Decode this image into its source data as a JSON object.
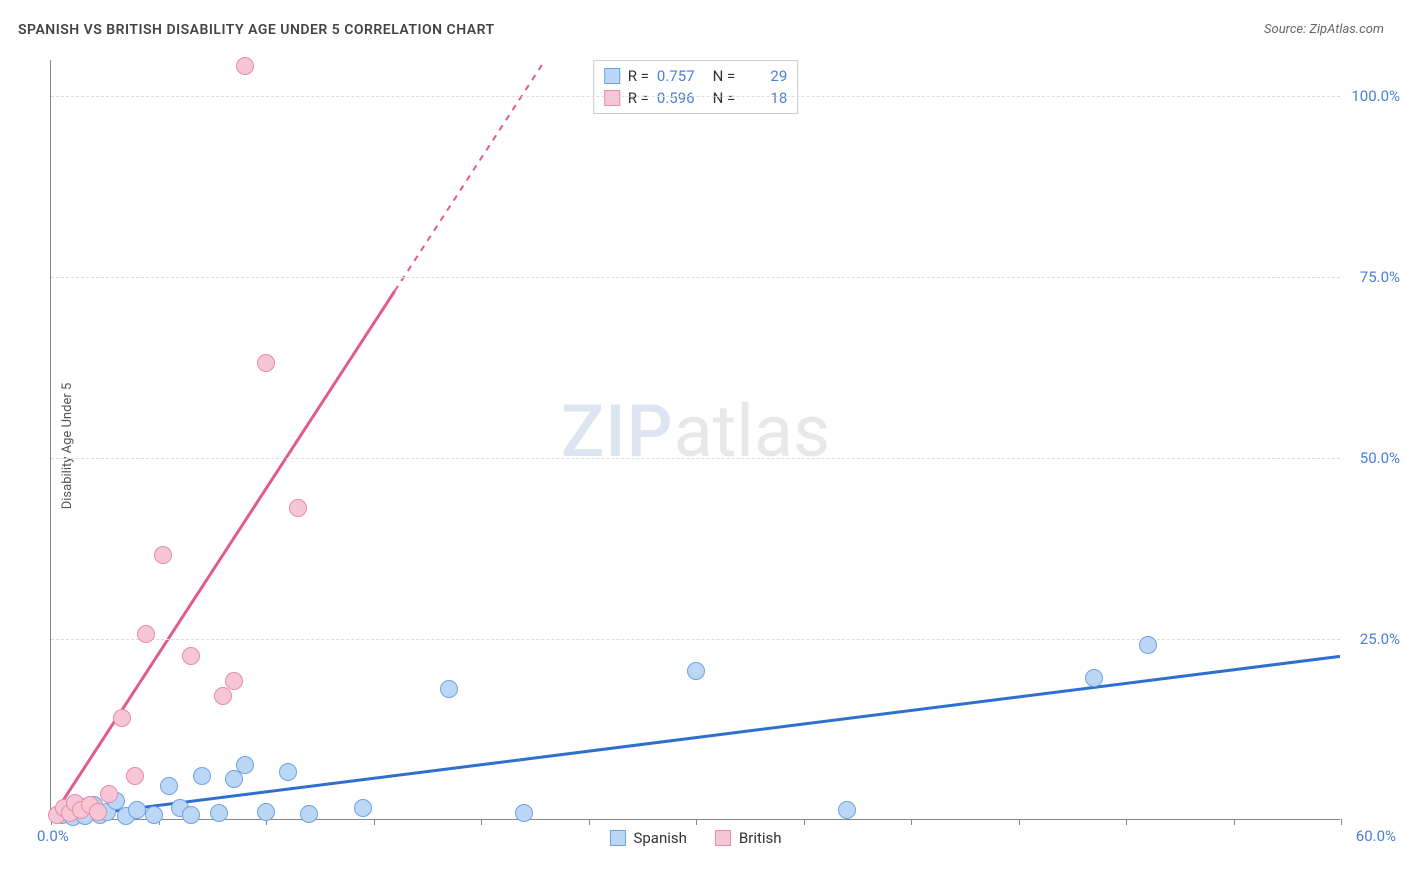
{
  "title": "SPANISH VS BRITISH DISABILITY AGE UNDER 5 CORRELATION CHART",
  "source": "Source: ZipAtlas.com",
  "y_label": "Disability Age Under 5",
  "watermark_a": "ZIP",
  "watermark_b": "atlas",
  "chart": {
    "type": "scatter",
    "xlim": [
      0,
      60
    ],
    "ylim": [
      0,
      105
    ],
    "x_origin_label": "0.0%",
    "x_max_label": "60.0%",
    "x_ticks_pct": [
      0,
      5,
      10,
      15,
      20,
      25,
      30,
      35,
      40,
      45,
      50,
      55,
      60
    ],
    "y_gridlines": [
      25,
      50,
      75,
      100
    ],
    "y_tick_labels": [
      "25.0%",
      "50.0%",
      "75.0%",
      "100.0%"
    ],
    "series": [
      {
        "name": "Spanish",
        "color_fill": "#bcd6f5",
        "color_stroke": "#6fa3e0",
        "trend_color": "#2f6fd0",
        "R": "0.757",
        "N": "29",
        "trend": {
          "x1": 0,
          "y1": 0,
          "x2": 60,
          "y2": 22.5,
          "dashed_after_x": null
        },
        "point_radius": 9,
        "points": [
          [
            0.5,
            0.5
          ],
          [
            0.8,
            1.2
          ],
          [
            1.0,
            0.3
          ],
          [
            1.3,
            1.8
          ],
          [
            1.6,
            0.4
          ],
          [
            2.0,
            2.0
          ],
          [
            2.3,
            0.6
          ],
          [
            2.6,
            1.0
          ],
          [
            3.0,
            2.5
          ],
          [
            3.5,
            0.4
          ],
          [
            4.0,
            1.2
          ],
          [
            4.8,
            0.5
          ],
          [
            5.5,
            4.5
          ],
          [
            6.0,
            1.5
          ],
          [
            6.5,
            0.6
          ],
          [
            7.0,
            6.0
          ],
          [
            7.8,
            0.8
          ],
          [
            8.5,
            5.5
          ],
          [
            9.0,
            7.5
          ],
          [
            10.0,
            1.0
          ],
          [
            11.0,
            6.5
          ],
          [
            12.0,
            0.7
          ],
          [
            14.5,
            1.5
          ],
          [
            18.5,
            18.0
          ],
          [
            22.0,
            0.8
          ],
          [
            30.0,
            20.5
          ],
          [
            37.0,
            1.2
          ],
          [
            48.5,
            19.5
          ],
          [
            51.0,
            24.0
          ]
        ]
      },
      {
        "name": "British",
        "color_fill": "#f6c6d4",
        "color_stroke": "#e98bab",
        "trend_color": "#e15c8a",
        "R": "0.596",
        "N": "18",
        "trend": {
          "x1": 0,
          "y1": 0,
          "x2": 23,
          "y2": 105,
          "dashed_after_x": 16
        },
        "point_radius": 9,
        "points": [
          [
            0.3,
            0.6
          ],
          [
            0.6,
            1.5
          ],
          [
            0.9,
            0.8
          ],
          [
            1.1,
            2.2
          ],
          [
            1.4,
            1.3
          ],
          [
            1.8,
            2.0
          ],
          [
            2.2,
            1.0
          ],
          [
            2.7,
            3.5
          ],
          [
            3.3,
            14.0
          ],
          [
            3.9,
            6.0
          ],
          [
            4.4,
            25.5
          ],
          [
            5.2,
            36.5
          ],
          [
            6.5,
            22.5
          ],
          [
            8.0,
            17.0
          ],
          [
            8.5,
            19.0
          ],
          [
            9.0,
            104.0
          ],
          [
            10.0,
            63.0
          ],
          [
            11.5,
            43.0
          ]
        ]
      }
    ]
  },
  "stats_box": {
    "rows": [
      {
        "swatch_fill": "#bcd6f5",
        "swatch_stroke": "#6fa3e0",
        "r_label": "R =",
        "r_val": "0.757",
        "n_label": "N =",
        "n_val": "29"
      },
      {
        "swatch_fill": "#f6c6d4",
        "swatch_stroke": "#e98bab",
        "r_label": "R =",
        "r_val": "0.596",
        "n_label": "N =",
        "n_val": "18"
      }
    ]
  },
  "legend": [
    {
      "label": "Spanish",
      "fill": "#bcd6f5",
      "stroke": "#6fa3e0"
    },
    {
      "label": "British",
      "fill": "#f6c6d4",
      "stroke": "#e98bab"
    }
  ]
}
